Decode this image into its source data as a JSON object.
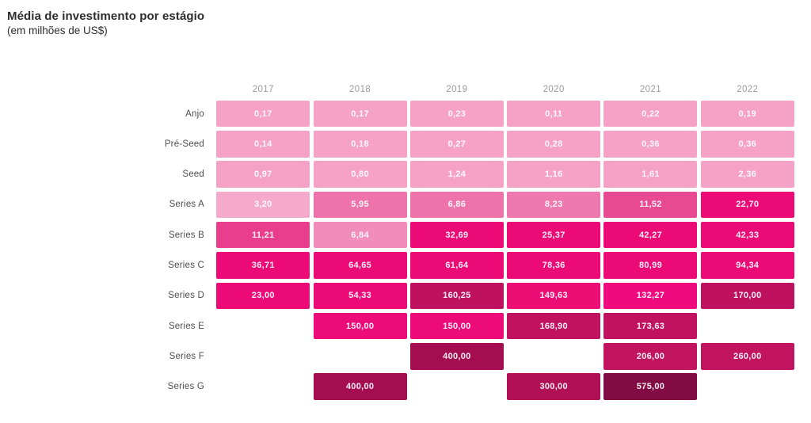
{
  "chart_data": {
    "type": "heatmap",
    "title": "Média de investimento por estágio",
    "subtitle": "(em milhões de US$)",
    "value_format": "pt-BR (comma decimal), millions of US$",
    "legend": "none",
    "columns": [
      "2017",
      "2018",
      "2019",
      "2020",
      "2021",
      "2022"
    ],
    "rows": [
      {
        "label": "Anjo",
        "cells": [
          {
            "display": "0,17",
            "value": 0.17,
            "color": "#F5A2C6"
          },
          {
            "display": "0,17",
            "value": 0.17,
            "color": "#F5A2C6"
          },
          {
            "display": "0,23",
            "value": 0.23,
            "color": "#F5A2C6"
          },
          {
            "display": "0,11",
            "value": 0.11,
            "color": "#F5A2C6"
          },
          {
            "display": "0,22",
            "value": 0.22,
            "color": "#F5A2C6"
          },
          {
            "display": "0,19",
            "value": 0.19,
            "color": "#F5A2C6"
          }
        ]
      },
      {
        "label": "Pré-Seed",
        "cells": [
          {
            "display": "0,14",
            "value": 0.14,
            "color": "#F5A2C6"
          },
          {
            "display": "0,18",
            "value": 0.18,
            "color": "#F5A2C6"
          },
          {
            "display": "0,27",
            "value": 0.27,
            "color": "#F5A2C6"
          },
          {
            "display": "0,28",
            "value": 0.28,
            "color": "#F5A2C6"
          },
          {
            "display": "0,36",
            "value": 0.36,
            "color": "#F5A2C6"
          },
          {
            "display": "0,36",
            "value": 0.36,
            "color": "#F5A2C6"
          }
        ]
      },
      {
        "label": "Seed",
        "cells": [
          {
            "display": "0,97",
            "value": 0.97,
            "color": "#F5A2C6"
          },
          {
            "display": "0,80",
            "value": 0.8,
            "color": "#F5A2C6"
          },
          {
            "display": "1,24",
            "value": 1.24,
            "color": "#F5A2C6"
          },
          {
            "display": "1,16",
            "value": 1.16,
            "color": "#F5A2C6"
          },
          {
            "display": "1,61",
            "value": 1.61,
            "color": "#F5A2C6"
          },
          {
            "display": "2,36",
            "value": 2.36,
            "color": "#F5A2C6"
          }
        ]
      },
      {
        "label": "Series A",
        "cells": [
          {
            "display": "3,20",
            "value": 3.2,
            "color": "#F5A9CB"
          },
          {
            "display": "5,95",
            "value": 5.95,
            "color": "#EF73AB"
          },
          {
            "display": "6,86",
            "value": 6.86,
            "color": "#EF73AB"
          },
          {
            "display": "8,23",
            "value": 8.23,
            "color": "#EF79AF"
          },
          {
            "display": "11,52",
            "value": 11.52,
            "color": "#E74A93"
          },
          {
            "display": "22,70",
            "value": 22.7,
            "color": "#EC0B76"
          }
        ]
      },
      {
        "label": "Series B",
        "cells": [
          {
            "display": "11,21",
            "value": 11.21,
            "color": "#E93E8D"
          },
          {
            "display": "6,84",
            "value": 6.84,
            "color": "#F18DBA"
          },
          {
            "display": "32,69",
            "value": 32.69,
            "color": "#EC0B76"
          },
          {
            "display": "25,37",
            "value": 25.37,
            "color": "#EC0B76"
          },
          {
            "display": "42,27",
            "value": 42.27,
            "color": "#EC0B76"
          },
          {
            "display": "42,33",
            "value": 42.33,
            "color": "#EC0B76"
          }
        ]
      },
      {
        "label": "Series C",
        "cells": [
          {
            "display": "36,71",
            "value": 36.71,
            "color": "#EC0B76"
          },
          {
            "display": "64,65",
            "value": 64.65,
            "color": "#EC0B76"
          },
          {
            "display": "61,64",
            "value": 61.64,
            "color": "#EC0B76"
          },
          {
            "display": "78,36",
            "value": 78.36,
            "color": "#EC0B76"
          },
          {
            "display": "80,99",
            "value": 80.99,
            "color": "#EC0B76"
          },
          {
            "display": "94,34",
            "value": 94.34,
            "color": "#EC0B76"
          }
        ]
      },
      {
        "label": "Series D",
        "cells": [
          {
            "display": "23,00",
            "value": 23.0,
            "color": "#EC0B76"
          },
          {
            "display": "54,33",
            "value": 54.33,
            "color": "#EC0B76"
          },
          {
            "display": "160,25",
            "value": 160.25,
            "color": "#BE1261"
          },
          {
            "display": "149,63",
            "value": 149.63,
            "color": "#EC0D75"
          },
          {
            "display": "132,27",
            "value": 132.27,
            "color": "#EF0A7D"
          },
          {
            "display": "170,00",
            "value": 170.0,
            "color": "#BE1261"
          }
        ]
      },
      {
        "label": "Series E",
        "cells": [
          null,
          {
            "display": "150,00",
            "value": 150.0,
            "color": "#ED0B79"
          },
          {
            "display": "150,00",
            "value": 150.0,
            "color": "#ED0B79"
          },
          {
            "display": "168,90",
            "value": 168.9,
            "color": "#C01260"
          },
          {
            "display": "173,63",
            "value": 173.63,
            "color": "#C01260"
          },
          null
        ]
      },
      {
        "label": "Series F",
        "cells": [
          null,
          null,
          {
            "display": "400,00",
            "value": 400.0,
            "color": "#A40D4F"
          },
          null,
          {
            "display": "206,00",
            "value": 206.0,
            "color": "#C2145E"
          },
          {
            "display": "260,00",
            "value": 260.0,
            "color": "#C2145E"
          }
        ]
      },
      {
        "label": "Series G",
        "cells": [
          null,
          {
            "display": "400,00",
            "value": 400.0,
            "color": "#A40D4F"
          },
          null,
          {
            "display": "300,00",
            "value": 300.0,
            "color": "#B11055"
          },
          {
            "display": "575,00",
            "value": 575.0,
            "color": "#810B42"
          },
          null
        ]
      }
    ],
    "style": {
      "title_color": "#2d2d2d",
      "row_label_color": "#4d4d4d",
      "column_header_color": "#9b9b9b",
      "cell_text_color": "#ffffff",
      "background": "#ffffff"
    }
  }
}
